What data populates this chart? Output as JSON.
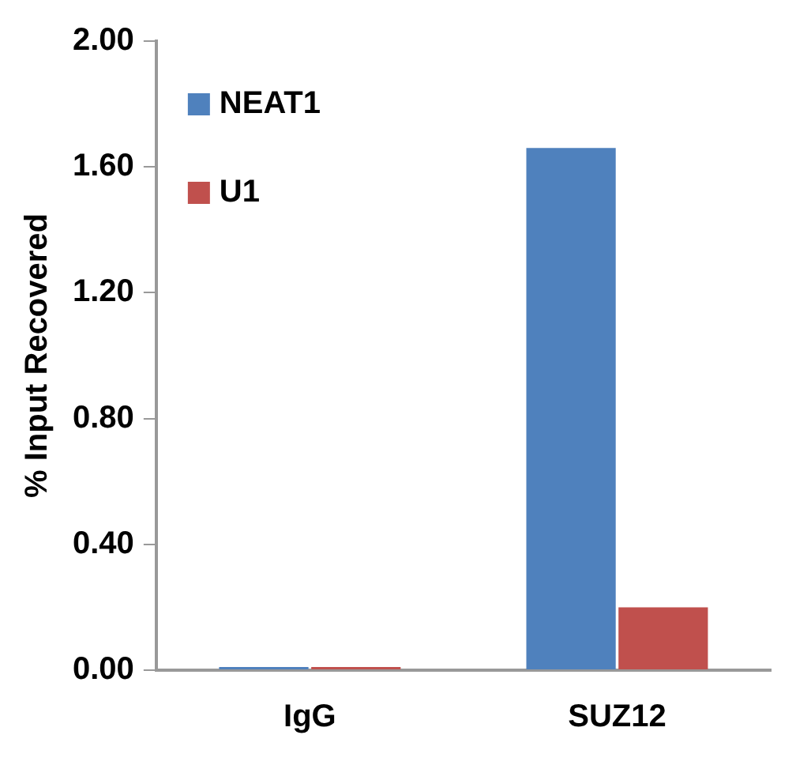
{
  "chart_data": {
    "type": "bar",
    "ylabel": "% Input Recovered",
    "categories": [
      "IgG",
      "SUZ12"
    ],
    "series": [
      {
        "name": "NEAT1",
        "color": "#4f81bd",
        "values": [
          0.01,
          1.66
        ]
      },
      {
        "name": "U1",
        "color": "#c0504d",
        "values": [
          0.01,
          0.2
        ]
      }
    ],
    "ylim": [
      0,
      2
    ],
    "yticks": [
      {
        "value": 0,
        "label": "0.00"
      },
      {
        "value": 0.4,
        "label": "0.40"
      },
      {
        "value": 0.8,
        "label": "0.80"
      },
      {
        "value": 1.2,
        "label": "1.20"
      },
      {
        "value": 1.6,
        "label": "1.60"
      },
      {
        "value": 2,
        "label": "2.00"
      }
    ],
    "grid": false,
    "legend": "top left"
  }
}
